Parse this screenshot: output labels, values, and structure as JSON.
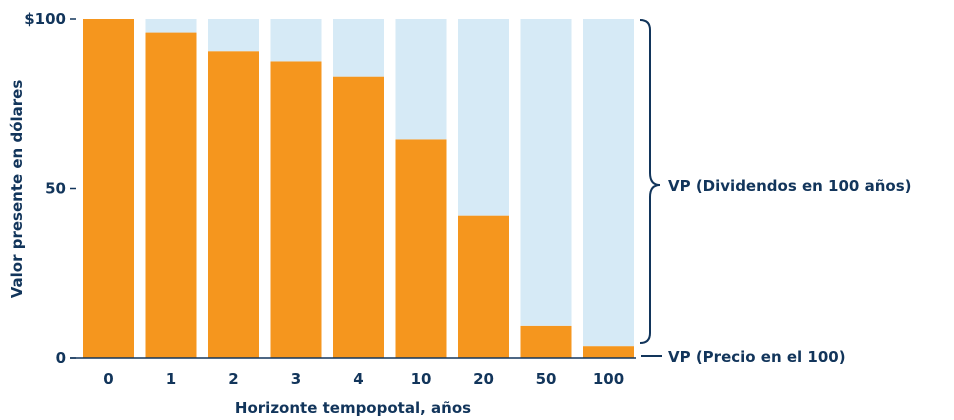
{
  "chart_data": {
    "type": "bar",
    "stacked": true,
    "categories": [
      "0",
      "1",
      "2",
      "3",
      "4",
      "10",
      "20",
      "50",
      "100"
    ],
    "series": [
      {
        "values": [
          100,
          96,
          90.5,
          87.5,
          83,
          64.5,
          42,
          9.5,
          3.5
        ],
        "color": "#f5961e"
      },
      {
        "values": [
          0,
          4,
          9.5,
          12.5,
          17,
          35.5,
          58,
          90.5,
          96.5
        ],
        "color": "#d6eaf6"
      }
    ],
    "xlabel": "Horizonte tempopotal, años",
    "ylabel": "Valor presente en dólares",
    "ylim": [
      0,
      100
    ],
    "yticks": [
      0,
      50,
      100
    ],
    "ytick_labels": [
      "0",
      "50",
      "$100"
    ],
    "grid": false,
    "annotations": {
      "dividends": "VP (Dividendos en 100 años)",
      "price": "VP (Precio en el 100)"
    },
    "colors": {
      "text": "#12355b",
      "bracket": "#12355b"
    }
  }
}
